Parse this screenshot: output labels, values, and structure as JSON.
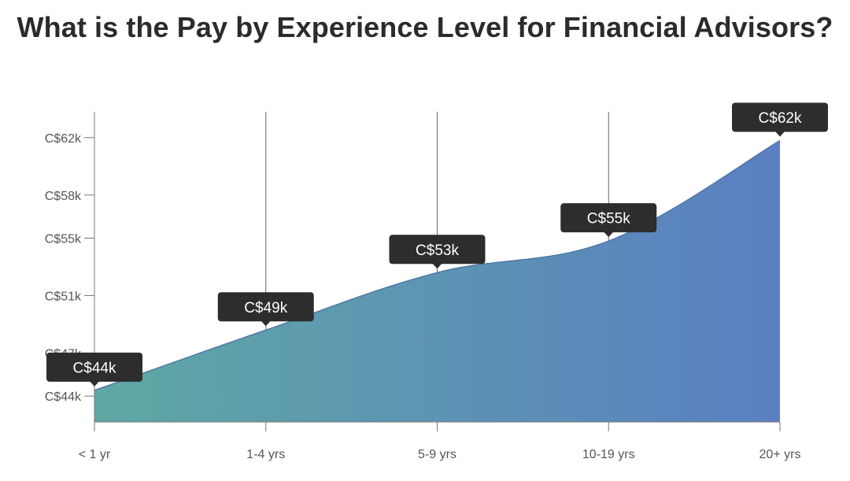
{
  "title": "What is the Pay by Experience Level for Financial Advisors?",
  "colors": {
    "area_left": "#5fa8a4",
    "area_right": "#5a7fc2",
    "callout_bg": "#2d2d2d",
    "axis": "#777777"
  },
  "chart_data": {
    "type": "area",
    "title": "What is the Pay by Experience Level for Financial Advisors?",
    "xlabel": "",
    "ylabel": "",
    "categories": [
      "< 1 yr",
      "1-4 yrs",
      "5-9 yrs",
      "10-19 yrs",
      "20+ yrs"
    ],
    "values": [
      44.4,
      48.6,
      52.6,
      54.8,
      61.8
    ],
    "value_labels": [
      "C$44k",
      "C$49k",
      "C$53k",
      "C$55k",
      "C$62k"
    ],
    "y_ticks": [
      44,
      47,
      51,
      55,
      58,
      62
    ],
    "y_tick_labels": [
      "C$44k",
      "C$47k",
      "C$51k",
      "C$55k",
      "C$58k",
      "C$62k"
    ],
    "ylim": [
      42.2,
      63.8
    ],
    "grid": "vertical lines at categories",
    "legend": "none"
  }
}
